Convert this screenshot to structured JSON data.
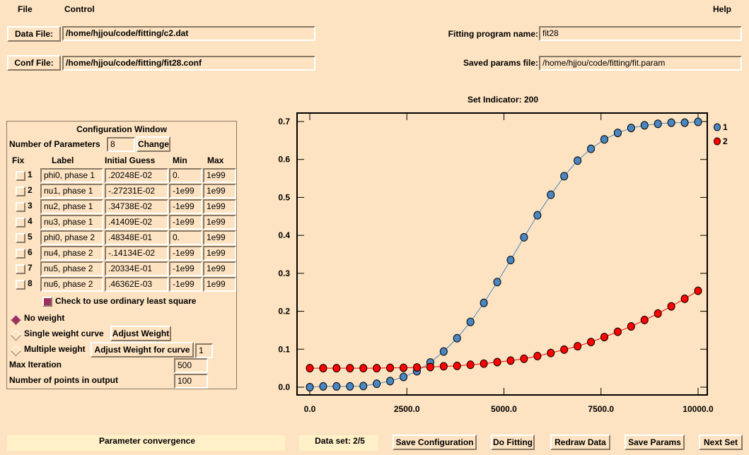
{
  "menu": {
    "file": "File",
    "control": "Control",
    "help": "Help"
  },
  "files": {
    "data_file_label": "Data File:",
    "data_file": "/home/hjjou/code/fitting/c2.dat",
    "conf_file_label": "Conf File:",
    "conf_file": "/home/hjjou/code/fitting/fit28.conf",
    "program_label": "Fitting program name:",
    "program": "fit28",
    "saved_label": "Saved params file:",
    "saved": "/home/hjjou/code/fitting/fit.param"
  },
  "config": {
    "title": "Configuration Window",
    "num_params_label": "Number of Parameters",
    "num_params": "8",
    "change": "Change",
    "headers": [
      "Fix",
      "Label",
      "Initial Guess",
      "Min",
      "Max"
    ],
    "rows": [
      {
        "n": "1",
        "label": "phi0, phase 1",
        "guess": ".20248E-02",
        "min": "0.",
        "max": "1e99"
      },
      {
        "n": "2",
        "label": "nu1, phase 1",
        "guess": "-.27231E-02",
        "min": "-1e99",
        "max": "1e99"
      },
      {
        "n": "3",
        "label": "nu2, phase 1",
        "guess": ".34738E-02",
        "min": "-1e99",
        "max": "1e99"
      },
      {
        "n": "4",
        "label": "nu3, phase 1",
        "guess": ".41409E-02",
        "min": "-1e99",
        "max": "1e99"
      },
      {
        "n": "5",
        "label": "phi0, phase 2",
        "guess": ".48348E-01",
        "min": "0.",
        "max": "1e99"
      },
      {
        "n": "6",
        "label": "nu4, phase 2",
        "guess": "-.14134E-02",
        "min": "-1e99",
        "max": "1e99"
      },
      {
        "n": "7",
        "label": "nu5, phase 2",
        "guess": ".20334E-01",
        "min": "-1e99",
        "max": "1e99"
      },
      {
        "n": "8",
        "label": "nu6, phase 2",
        "guess": ".46362E-03",
        "min": "-1e99",
        "max": "1e99"
      }
    ],
    "ols_label": "Check to use ordinary least square",
    "no_weight": "No weight",
    "single_weight": "Single weight curve",
    "adjust_weight": "Adjust Weight",
    "multi_weight": "Multiple weight",
    "adjust_weight_curve": "Adjust Weight for curve",
    "curve_num": "1",
    "max_iter_label": "Max Iteration",
    "max_iter": "500",
    "npoints_label": "Number of points in output",
    "npoints": "100"
  },
  "bottom": {
    "status": "Parameter convergence",
    "dataset": "Data set: 2/5",
    "save_config": "Save Configuration",
    "do_fitting": "Do Fitting",
    "redraw": "Redraw Data",
    "save_params": "Save Params",
    "next_set": "Next Set"
  },
  "chart_data": {
    "type": "scatter",
    "title": "Set Indicator: 200",
    "xlim": [
      0,
      10000
    ],
    "ylim": [
      0,
      0.7
    ],
    "xticks": [
      "0.0",
      "2500.0",
      "5000.0",
      "7500.0",
      "10000.0"
    ],
    "yticks": [
      "0.0",
      "0.1",
      "0.2",
      "0.3",
      "0.4",
      "0.5",
      "0.6",
      "0.7"
    ],
    "legend": "top-right",
    "series": [
      {
        "name": "1",
        "color": "#4a86c0",
        "values": [
          0.0,
          0.002,
          0.002,
          0.002,
          0.003,
          0.009,
          0.016,
          0.027,
          0.042,
          0.065,
          0.094,
          0.129,
          0.172,
          0.222,
          0.277,
          0.335,
          0.395,
          0.453,
          0.507,
          0.556,
          0.597,
          0.628,
          0.653,
          0.67,
          0.683,
          0.69,
          0.694,
          0.697,
          0.697,
          0.699
        ]
      },
      {
        "name": "2",
        "color": "#ff0000",
        "values": [
          0.05,
          0.05,
          0.05,
          0.05,
          0.05,
          0.05,
          0.051,
          0.051,
          0.052,
          0.053,
          0.055,
          0.056,
          0.059,
          0.062,
          0.066,
          0.07,
          0.075,
          0.082,
          0.09,
          0.099,
          0.108,
          0.119,
          0.132,
          0.146,
          0.16,
          0.177,
          0.194,
          0.213,
          0.233,
          0.254
        ]
      }
    ]
  }
}
